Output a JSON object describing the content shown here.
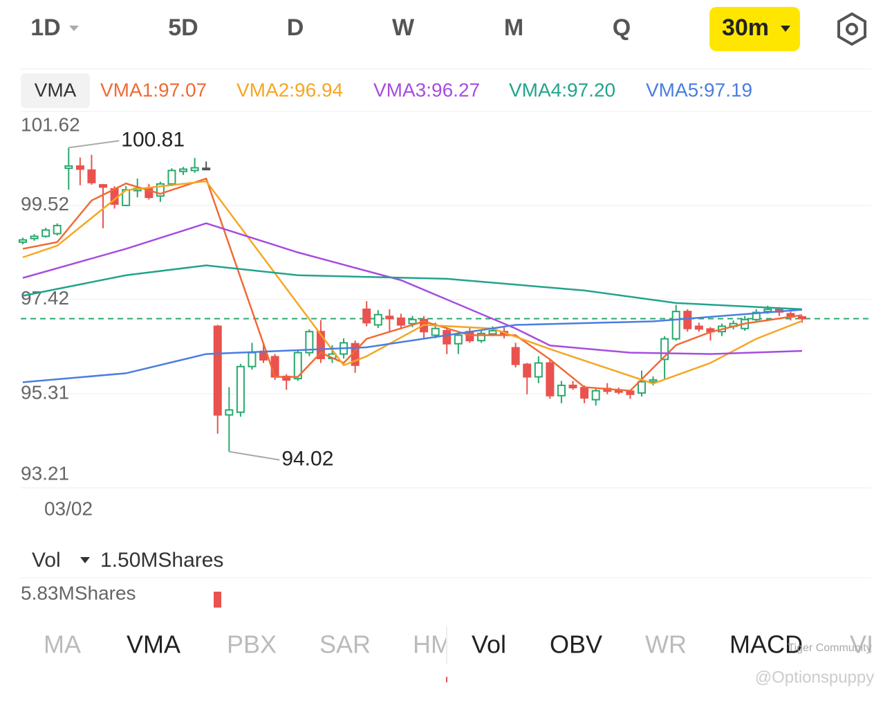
{
  "toolbar": {
    "tabs": [
      "1D",
      "5D",
      "D",
      "W",
      "M",
      "Q"
    ],
    "selected": "30m"
  },
  "indicator_bar": {
    "name": "VMA",
    "legend": [
      {
        "label": "VMA1:97.07",
        "color": "#f06a35"
      },
      {
        "label": "VMA2:96.94",
        "color": "#f5a623"
      },
      {
        "label": "VMA3:96.27",
        "color": "#a54de0"
      },
      {
        "label": "VMA4:97.20",
        "color": "#23a38c"
      },
      {
        "label": "VMA5:97.19",
        "color": "#4a7de0"
      }
    ]
  },
  "price_chart": {
    "ylim": [
      93.21,
      101.62
    ],
    "yticks": [
      101.62,
      99.52,
      97.42,
      95.31,
      93.21
    ],
    "date_label": "03/02",
    "last_price": 96.99,
    "annotations": [
      100.81,
      94.02
    ],
    "up_color": "#26a96c",
    "down_color": "#e9524f",
    "open": [
      98.7,
      98.78,
      98.83,
      98.89,
      100.35,
      100.4,
      100.31,
      99.98,
      99.89,
      99.52,
      99.85,
      99.9,
      99.73,
      100.0,
      100.28,
      100.3,
      100.35,
      96.82,
      94.84,
      94.9,
      95.92,
      96.26,
      96.14,
      95.7,
      95.65,
      96.23,
      96.7,
      96.1,
      96.2,
      96.43,
      97.2,
      96.85,
      97.04,
      97.0,
      96.88,
      96.97,
      96.62,
      96.72,
      96.43,
      96.7,
      96.5,
      96.65,
      96.7,
      96.34,
      95.97,
      95.69,
      96.0,
      95.27,
      95.5,
      95.45,
      95.18,
      95.43,
      95.38,
      95.37,
      95.33,
      95.58,
      96.08,
      96.54,
      97.15,
      96.82,
      96.76,
      96.7,
      96.82,
      96.77,
      96.97,
      97.15,
      97.2,
      97.1,
      97.03
    ],
    "close": [
      98.75,
      98.83,
      98.97,
      99.07,
      100.4,
      100.33,
      100.03,
      99.93,
      99.55,
      99.87,
      99.9,
      99.7,
      100.0,
      100.3,
      100.33,
      100.36,
      100.35,
      94.84,
      94.95,
      95.92,
      96.23,
      96.07,
      95.69,
      95.62,
      96.23,
      96.7,
      96.1,
      96.2,
      96.45,
      95.95,
      96.9,
      97.08,
      96.99,
      96.85,
      96.97,
      96.7,
      96.77,
      96.43,
      96.62,
      96.5,
      96.66,
      96.72,
      96.64,
      95.97,
      95.69,
      96.0,
      95.27,
      95.5,
      95.45,
      95.22,
      95.38,
      95.37,
      95.35,
      95.3,
      95.58,
      95.62,
      96.54,
      97.15,
      96.77,
      96.76,
      96.7,
      96.82,
      96.88,
      96.97,
      97.13,
      97.2,
      97.14,
      97.03,
      96.99
    ],
    "high": [
      98.8,
      98.88,
      99.02,
      99.12,
      100.81,
      100.59,
      100.65,
      100.0,
      99.95,
      99.95,
      100.12,
      100.0,
      100.05,
      100.35,
      100.38,
      100.58,
      100.5,
      96.85,
      95.46,
      95.98,
      96.45,
      96.46,
      96.2,
      95.75,
      96.3,
      96.75,
      96.96,
      96.4,
      96.55,
      96.5,
      97.38,
      97.18,
      97.2,
      97.1,
      97.05,
      97.05,
      96.9,
      96.8,
      96.7,
      96.8,
      96.75,
      96.82,
      96.8,
      96.45,
      96.0,
      96.15,
      96.1,
      95.6,
      95.6,
      95.5,
      95.45,
      95.55,
      95.45,
      95.4,
      95.83,
      95.7,
      96.6,
      97.3,
      97.2,
      96.9,
      96.8,
      96.88,
      96.95,
      97.05,
      97.2,
      97.28,
      97.25,
      97.15,
      97.05
    ],
    "low": [
      98.65,
      98.73,
      98.8,
      98.85,
      99.87,
      99.97,
      99.98,
      99.01,
      99.45,
      99.5,
      99.7,
      99.65,
      99.6,
      99.95,
      100.2,
      100.25,
      100.35,
      94.42,
      94.02,
      94.8,
      95.85,
      96.0,
      95.62,
      95.4,
      95.6,
      96.15,
      96.0,
      96.0,
      96.1,
      95.78,
      96.82,
      96.78,
      96.7,
      96.75,
      96.8,
      96.55,
      96.55,
      96.2,
      96.2,
      96.45,
      96.45,
      96.6,
      96.55,
      95.9,
      95.3,
      95.55,
      95.2,
      95.1,
      95.4,
      95.1,
      95.05,
      95.3,
      95.3,
      95.2,
      95.25,
      95.5,
      95.65,
      96.5,
      96.7,
      96.7,
      96.5,
      96.6,
      96.75,
      96.72,
      96.9,
      97.1,
      97.05,
      96.95,
      96.9
    ],
    "series": [
      {
        "color": "#f06a35",
        "x": [
          0,
          3,
          6,
          9,
          12,
          16,
          22,
          24,
          26,
          28,
          30,
          35,
          39,
          43,
          46,
          49,
          53,
          57,
          60,
          63,
          68
        ],
        "values": [
          98.55,
          98.7,
          99.63,
          100.01,
          99.78,
          100.12,
          95.69,
          95.69,
          96.23,
          96.0,
          96.54,
          96.93,
          96.62,
          96.62,
          96.08,
          95.46,
          95.38,
          96.4,
          96.69,
          96.88,
          97.07
        ]
      },
      {
        "color": "#f5a623",
        "x": [
          0,
          3,
          9,
          16,
          28,
          30,
          35,
          41,
          46,
          55,
          60,
          64,
          68
        ],
        "values": [
          98.36,
          98.62,
          99.86,
          100.06,
          95.95,
          96.15,
          96.85,
          96.77,
          96.31,
          95.54,
          96.0,
          96.54,
          96.94
        ]
      },
      {
        "color": "#a54de0",
        "x": [
          0,
          9,
          16,
          24,
          33,
          43,
          46,
          53,
          60,
          68
        ],
        "values": [
          97.9,
          98.55,
          99.12,
          98.47,
          97.85,
          96.77,
          96.39,
          96.23,
          96.2,
          96.27
        ]
      },
      {
        "color": "#23a38c",
        "x": [
          0,
          9,
          16,
          24,
          37,
          49,
          57,
          68
        ],
        "values": [
          97.5,
          97.96,
          98.18,
          97.96,
          97.88,
          97.62,
          97.34,
          97.2
        ]
      },
      {
        "color": "#4a7de0",
        "x": [
          0,
          9,
          16,
          30,
          43,
          55,
          68
        ],
        "values": [
          95.57,
          95.77,
          96.2,
          96.35,
          96.85,
          96.93,
          97.19
        ]
      }
    ]
  },
  "volume": {
    "name": "Vol",
    "current": "1.50MShares",
    "max_label": "5.83MShares"
  },
  "bottom_tabs": [
    "MA",
    "VMA",
    "PBX",
    "SAR",
    "HM",
    "Vol",
    "OBV",
    "WR",
    "MACD",
    "VI"
  ],
  "watermark": {
    "community": "Tiger Community",
    "user": "@Optionspuppy"
  }
}
